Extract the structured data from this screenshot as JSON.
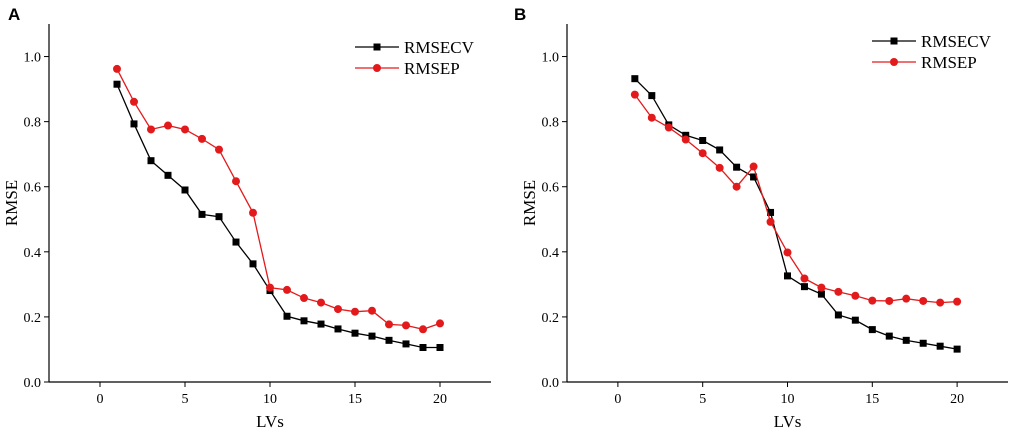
{
  "chart_data": [
    {
      "panel": "A",
      "type": "line",
      "xlabel": "LVs",
      "ylabel": "RMSE",
      "xlim": [
        -3,
        23
      ],
      "ylim": [
        0,
        1.1
      ],
      "xticks": [
        0,
        5,
        10,
        15,
        20
      ],
      "yticks": [
        0.0,
        0.2,
        0.4,
        0.6,
        0.8,
        1.0
      ],
      "ytick_labels": [
        "0.0",
        "0.2",
        "0.4",
        "0.6",
        "0.8",
        "1.0"
      ],
      "legend_position": "top-right",
      "series": [
        {
          "name": "RMSECV",
          "color": "#000000",
          "marker": "square",
          "x": [
            1,
            2,
            3,
            4,
            5,
            6,
            7,
            8,
            9,
            10,
            11,
            12,
            13,
            14,
            15,
            16,
            17,
            18,
            19,
            20
          ],
          "values": [
            0.915,
            0.793,
            0.68,
            0.635,
            0.59,
            0.515,
            0.508,
            0.43,
            0.363,
            0.281,
            0.202,
            0.188,
            0.178,
            0.163,
            0.15,
            0.141,
            0.128,
            0.117,
            0.106,
            0.106
          ]
        },
        {
          "name": "RMSEP",
          "color": "#e31a1c",
          "marker": "circle",
          "x": [
            1,
            2,
            3,
            4,
            5,
            6,
            7,
            8,
            9,
            10,
            11,
            12,
            13,
            14,
            15,
            16,
            17,
            18,
            19,
            20
          ],
          "values": [
            0.962,
            0.861,
            0.776,
            0.788,
            0.776,
            0.747,
            0.714,
            0.617,
            0.52,
            0.29,
            0.283,
            0.258,
            0.244,
            0.224,
            0.216,
            0.219,
            0.177,
            0.174,
            0.162,
            0.18
          ]
        }
      ]
    },
    {
      "panel": "B",
      "type": "line",
      "xlabel": "LVs",
      "ylabel": "RMSE",
      "xlim": [
        -3,
        23
      ],
      "ylim": [
        0,
        1.1
      ],
      "xticks": [
        0,
        5,
        10,
        15,
        20
      ],
      "yticks": [
        0.0,
        0.2,
        0.4,
        0.6,
        0.8,
        1.0
      ],
      "ytick_labels": [
        "0.0",
        "0.2",
        "0.4",
        "0.6",
        "0.8",
        "1.0"
      ],
      "legend_position": "top-right",
      "series": [
        {
          "name": "RMSECV",
          "color": "#000000",
          "marker": "square",
          "x": [
            1,
            2,
            3,
            4,
            5,
            6,
            7,
            8,
            9,
            10,
            11,
            12,
            13,
            14,
            15,
            16,
            17,
            18,
            19,
            20
          ],
          "values": [
            0.932,
            0.88,
            0.79,
            0.758,
            0.742,
            0.713,
            0.66,
            0.63,
            0.521,
            0.326,
            0.293,
            0.27,
            0.206,
            0.19,
            0.161,
            0.141,
            0.128,
            0.119,
            0.11,
            0.101
          ]
        },
        {
          "name": "RMSEP",
          "color": "#e31a1c",
          "marker": "circle",
          "x": [
            1,
            2,
            3,
            4,
            5,
            6,
            7,
            8,
            9,
            10,
            11,
            12,
            13,
            14,
            15,
            16,
            17,
            18,
            19,
            20
          ],
          "values": [
            0.883,
            0.812,
            0.782,
            0.745,
            0.703,
            0.658,
            0.6,
            0.662,
            0.492,
            0.398,
            0.318,
            0.29,
            0.277,
            0.265,
            0.25,
            0.249,
            0.256,
            0.249,
            0.244,
            0.247
          ]
        }
      ]
    }
  ]
}
